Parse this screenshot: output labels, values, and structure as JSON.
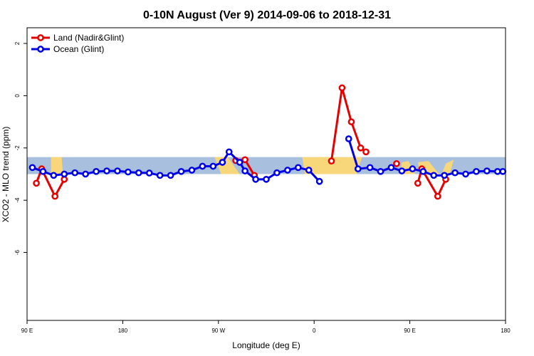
{
  "chart_data": {
    "type": "line",
    "title": "0-10N August (Ver 9)   2014-09-06 to 2018-12-31",
    "xlabel": "Longitude (deg E)",
    "ylabel": "XCO2 - MLO trend (ppm)",
    "xlim": [
      0,
      360
    ],
    "ylim": [
      -8.6,
      2.6
    ],
    "x_ticks": [
      {
        "value": 0,
        "label": "90 E"
      },
      {
        "value": 72,
        "label": "180"
      },
      {
        "value": 144,
        "label": "90 W"
      },
      {
        "value": 216,
        "label": "0"
      },
      {
        "value": 288,
        "label": "90 E"
      },
      {
        "value": 360,
        "label": "180"
      }
    ],
    "y_ticks": [
      {
        "value": 2,
        "label": "2"
      },
      {
        "value": 0,
        "label": "0"
      },
      {
        "value": -2,
        "label": "-2"
      },
      {
        "value": -4,
        "label": "-4"
      },
      {
        "value": -6,
        "label": "-6"
      }
    ],
    "grid": false,
    "legend_position": "top-left",
    "band": {
      "y_min": -3.0,
      "y_max": -2.35,
      "ocean_color": "#a8bfdd",
      "land_color": "#f8d77a"
    },
    "land_areas": [
      [
        [
          18,
          -2.35
        ],
        [
          26,
          -2.35
        ],
        [
          27,
          -3.0
        ],
        [
          18,
          -3.0
        ]
      ],
      [
        [
          141,
          -2.35
        ],
        [
          151,
          -2.35
        ],
        [
          160,
          -3.0
        ],
        [
          146,
          -3.0
        ]
      ],
      [
        [
          207,
          -2.35
        ],
        [
          227,
          -2.35
        ],
        [
          229,
          -3.0
        ],
        [
          209,
          -3.0
        ]
      ],
      [
        [
          227,
          -2.35
        ],
        [
          252,
          -2.35
        ],
        [
          248,
          -3.0
        ],
        [
          227,
          -3.0
        ]
      ],
      [
        [
          282,
          -2.55
        ],
        [
          287,
          -2.5
        ],
        [
          292,
          -3.0
        ],
        [
          281,
          -3.0
        ]
      ],
      [
        [
          294,
          -2.55
        ],
        [
          302,
          -2.5
        ],
        [
          310,
          -3.0
        ],
        [
          296,
          -3.0
        ]
      ],
      [
        [
          315,
          -2.6
        ],
        [
          321,
          -2.45
        ],
        [
          318,
          -3.0
        ],
        [
          312,
          -3.0
        ]
      ]
    ],
    "series": [
      {
        "name": "Land (Nadir&Glint)",
        "color": "#e60000",
        "segments": [
          {
            "x": [
              7,
              11,
              21,
              28
            ],
            "y": [
              -3.35,
              -2.8,
              -3.85,
              -3.2
            ]
          },
          {
            "x": [
              157,
              164,
              171
            ],
            "y": [
              -2.48,
              -2.45,
              -3.05
            ]
          },
          {
            "x": [
              229,
              237,
              244,
              251,
              255
            ],
            "y": [
              -2.5,
              0.3,
              -1.0,
              -2.0,
              -2.15
            ]
          },
          {
            "x": [
              278
            ],
            "y": [
              -2.6
            ]
          },
          {
            "x": [
              294,
              297,
              309,
              315
            ],
            "y": [
              -3.35,
              -2.8,
              -3.85,
              -3.2
            ]
          }
        ]
      },
      {
        "name": "Ocean (Glint)",
        "color": "#0000e6",
        "segments": [
          {
            "x": [
              4,
              12,
              20,
              28,
              36,
              44,
              52,
              60,
              68,
              76,
              84,
              92,
              100,
              108,
              116,
              124,
              132,
              140,
              147,
              152,
              160,
              164,
              172,
              180,
              188,
              196,
              204,
              212,
              220
            ],
            "y": [
              -2.75,
              -2.9,
              -3.05,
              -3.0,
              -2.95,
              -3.0,
              -2.9,
              -2.88,
              -2.88,
              -2.92,
              -2.95,
              -2.96,
              -3.05,
              -3.05,
              -2.9,
              -2.85,
              -2.7,
              -2.7,
              -2.55,
              -2.15,
              -2.55,
              -2.88,
              -3.2,
              -3.2,
              -2.95,
              -2.85,
              -2.75,
              -2.85,
              -3.28
            ]
          },
          {
            "x": [
              242,
              249,
              258,
              266,
              274,
              282,
              290,
              298,
              306,
              314,
              322,
              330,
              338,
              346,
              354,
              358
            ],
            "y": [
              -1.65,
              -2.8,
              -2.75,
              -2.9,
              -2.75,
              -2.88,
              -2.8,
              -2.9,
              -3.05,
              -3.05,
              -2.95,
              -3.0,
              -2.9,
              -2.88,
              -2.9,
              -2.9
            ]
          }
        ]
      }
    ]
  }
}
